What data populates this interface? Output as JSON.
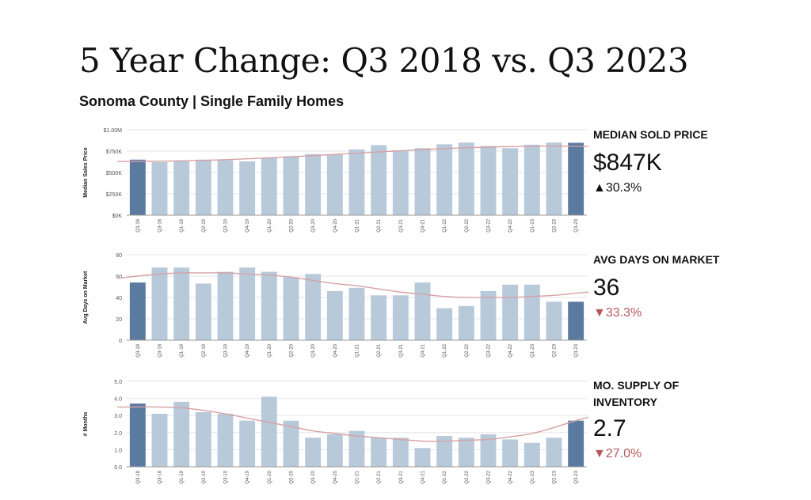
{
  "title": "5 Year Change: Q3 2018 vs. Q3 2023",
  "subtitle": "Sonoma County | Single Family Homes",
  "kpis": [
    {
      "label": "MEDIAN SOLD PRICE",
      "value": "$847K",
      "change": "▲30.3%"
    },
    {
      "label": "AVG DAYS ON MARKET",
      "value": "36",
      "change": "▼33.3%"
    },
    {
      "label": "MO. SUPPLY OF INVENTORY",
      "value": "2.7",
      "change": "▼27.0%"
    }
  ],
  "colors": {
    "highlight": "#5b7aa0",
    "bar": "#b8c9da",
    "trend": "#d4a2a5",
    "grid": "#e6e6e6",
    "axis": "#555555"
  },
  "chart_data": [
    {
      "type": "bar",
      "ylabel": "Median Sales Price",
      "ylim": [
        0,
        1000
      ],
      "yticks": [
        0,
        250,
        500,
        750,
        1000
      ],
      "ytick_labels": [
        "$0K",
        "$250K",
        "$500K",
        "$750K",
        "$1.00M"
      ],
      "categories": [
        "Q3-18",
        "Q3-18",
        "Q1-19",
        "Q2-19",
        "Q3-19",
        "Q4-19",
        "Q1-20",
        "Q2-20",
        "Q3-20",
        "Q4-20",
        "Q1-21",
        "Q2-21",
        "Q3-21",
        "Q4-21",
        "Q1-22",
        "Q2-22",
        "Q3-22",
        "Q4-22",
        "Q1-23",
        "Q2-23",
        "Q3-23"
      ],
      "values": [
        650,
        620,
        630,
        650,
        645,
        630,
        670,
        690,
        715,
        710,
        770,
        820,
        760,
        785,
        830,
        850,
        810,
        785,
        825,
        850,
        847
      ],
      "highlight": [
        0,
        20
      ],
      "trend": [
        630,
        632,
        636,
        642,
        650,
        660,
        671,
        684,
        697,
        711,
        726,
        740,
        754,
        767,
        779,
        789,
        797,
        803,
        807,
        808,
        806
      ]
    },
    {
      "type": "bar",
      "ylabel": "Avg Days on Market",
      "ylim": [
        0,
        80
      ],
      "yticks": [
        0,
        20,
        40,
        60,
        80
      ],
      "ytick_labels": [
        "0",
        "20",
        "40",
        "60",
        "80"
      ],
      "categories": [
        "Q3-18",
        "Q3-18",
        "Q1-19",
        "Q2-19",
        "Q3-19",
        "Q4-19",
        "Q1-20",
        "Q2-20",
        "Q3-20",
        "Q4-20",
        "Q1-21",
        "Q2-21",
        "Q3-21",
        "Q4-21",
        "Q1-22",
        "Q2-22",
        "Q3-22",
        "Q4-22",
        "Q1-23",
        "Q2-23",
        "Q3-23"
      ],
      "values": [
        54,
        68,
        68,
        53,
        64,
        68,
        64,
        59,
        62,
        46,
        49,
        42,
        42,
        54,
        30,
        32,
        46,
        52,
        52,
        36,
        36
      ],
      "highlight": [
        0,
        20
      ],
      "trend": [
        60,
        62,
        63,
        63,
        63,
        62,
        61,
        59,
        56,
        53,
        51,
        48,
        45,
        43,
        41,
        40,
        40,
        40,
        41,
        42,
        44
      ]
    },
    {
      "type": "bar",
      "ylabel": "# Months",
      "ylim": [
        0,
        5
      ],
      "yticks": [
        0,
        1,
        2,
        3,
        4,
        5
      ],
      "ytick_labels": [
        "0.0",
        "1.0",
        "2.0",
        "3.0",
        "4.0",
        "5.0"
      ],
      "categories": [
        "Q3-18",
        "Q3-18",
        "Q1-19",
        "Q2-19",
        "Q3-19",
        "Q4-19",
        "Q1-20",
        "Q2-20",
        "Q3-20",
        "Q4-20",
        "Q1-21",
        "Q2-21",
        "Q3-21",
        "Q4-21",
        "Q1-22",
        "Q2-22",
        "Q3-22",
        "Q4-22",
        "Q1-23",
        "Q2-23",
        "Q3-23"
      ],
      "values": [
        3.7,
        3.1,
        3.8,
        3.2,
        3.1,
        2.7,
        4.1,
        2.7,
        1.7,
        1.9,
        2.1,
        1.7,
        1.7,
        1.1,
        1.8,
        1.7,
        1.9,
        1.6,
        1.4,
        1.7,
        2.7
      ],
      "highlight": [
        0,
        20
      ],
      "trend": [
        3.5,
        3.5,
        3.45,
        3.3,
        3.1,
        2.85,
        2.6,
        2.35,
        2.1,
        1.95,
        1.8,
        1.7,
        1.6,
        1.5,
        1.5,
        1.55,
        1.6,
        1.75,
        1.95,
        2.3,
        2.7
      ]
    }
  ]
}
